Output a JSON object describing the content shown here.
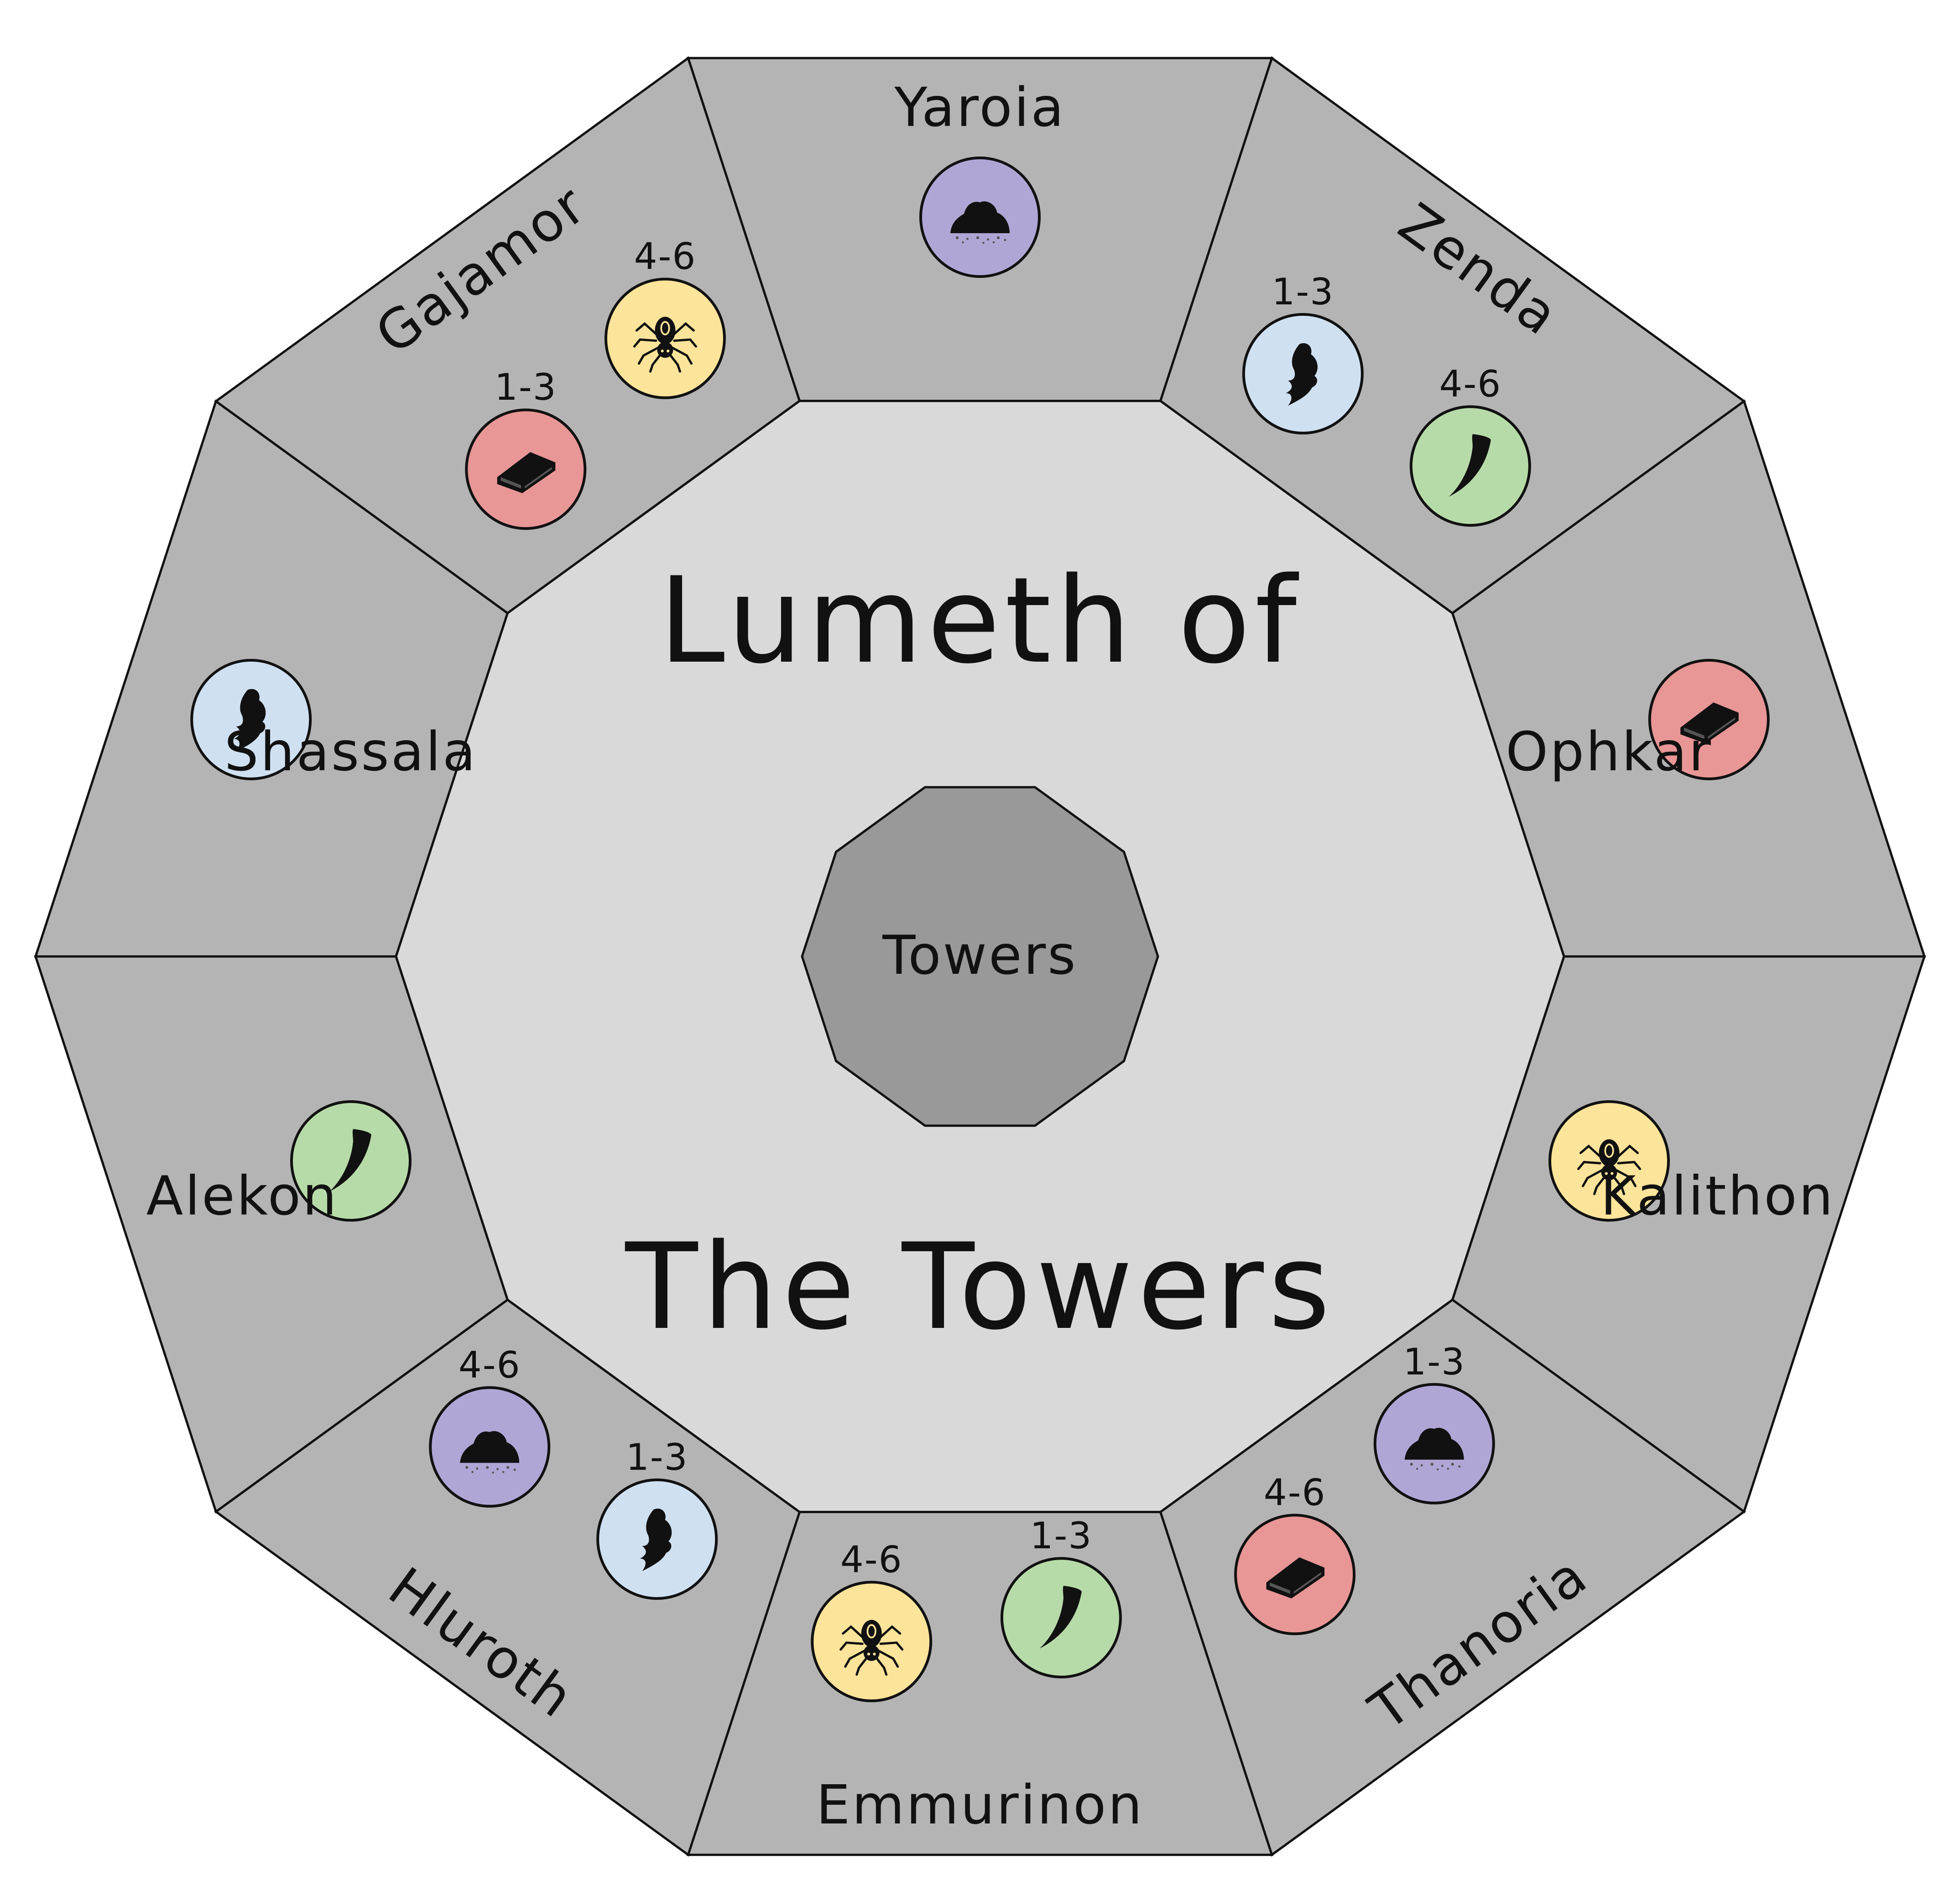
{
  "title": {
    "line1": "Lumeth of",
    "line2": "The Towers"
  },
  "center": {
    "label": "Towers"
  },
  "colors": {
    "outer_sector": "#b4b4b4",
    "inner_area": "#d9d9d9",
    "center_polygon": "#999999",
    "outline": "#111111",
    "resource": {
      "dirt": "#b0a6d6",
      "spirit": "#cfe0f1",
      "ingot": "#e89696",
      "claw": "#b7dba8",
      "spider": "#fce49a"
    }
  },
  "icons": {
    "dirt": "dirt-pile-icon",
    "spirit": "spirit-icon",
    "ingot": "ingot-icon",
    "claw": "claw-icon",
    "spider": "spider-icon"
  },
  "regions": [
    {
      "id": "yaroia",
      "name": "Yaroia",
      "tokens": [
        {
          "resource": "dirt",
          "range": ""
        }
      ]
    },
    {
      "id": "zenda",
      "name": "Zenda",
      "tokens": [
        {
          "resource": "spirit",
          "range": "1-3"
        },
        {
          "resource": "claw",
          "range": "4-6"
        }
      ]
    },
    {
      "id": "ophkar",
      "name": "Ophkar",
      "tokens": [
        {
          "resource": "ingot",
          "range": ""
        }
      ]
    },
    {
      "id": "kalithon",
      "name": "Kalithon",
      "tokens": [
        {
          "resource": "spider",
          "range": ""
        }
      ]
    },
    {
      "id": "thanoria",
      "name": "Thanoria",
      "tokens": [
        {
          "resource": "dirt",
          "range": "1-3"
        },
        {
          "resource": "ingot",
          "range": "4-6"
        }
      ]
    },
    {
      "id": "emmurinon",
      "name": "Emmurinon",
      "tokens": [
        {
          "resource": "claw",
          "range": "1-3"
        },
        {
          "resource": "spider",
          "range": "4-6"
        }
      ]
    },
    {
      "id": "hluroth",
      "name": "Hluroth",
      "tokens": [
        {
          "resource": "spirit",
          "range": "1-3"
        },
        {
          "resource": "dirt",
          "range": "4-6"
        }
      ]
    },
    {
      "id": "alekon",
      "name": "Alekon",
      "tokens": [
        {
          "resource": "claw",
          "range": ""
        }
      ]
    },
    {
      "id": "shassala",
      "name": "Shassala",
      "tokens": [
        {
          "resource": "spirit",
          "range": ""
        }
      ]
    },
    {
      "id": "gajamor",
      "name": "Gajamor",
      "tokens": [
        {
          "resource": "ingot",
          "range": "1-3"
        },
        {
          "resource": "spider",
          "range": "4-6"
        }
      ]
    }
  ]
}
